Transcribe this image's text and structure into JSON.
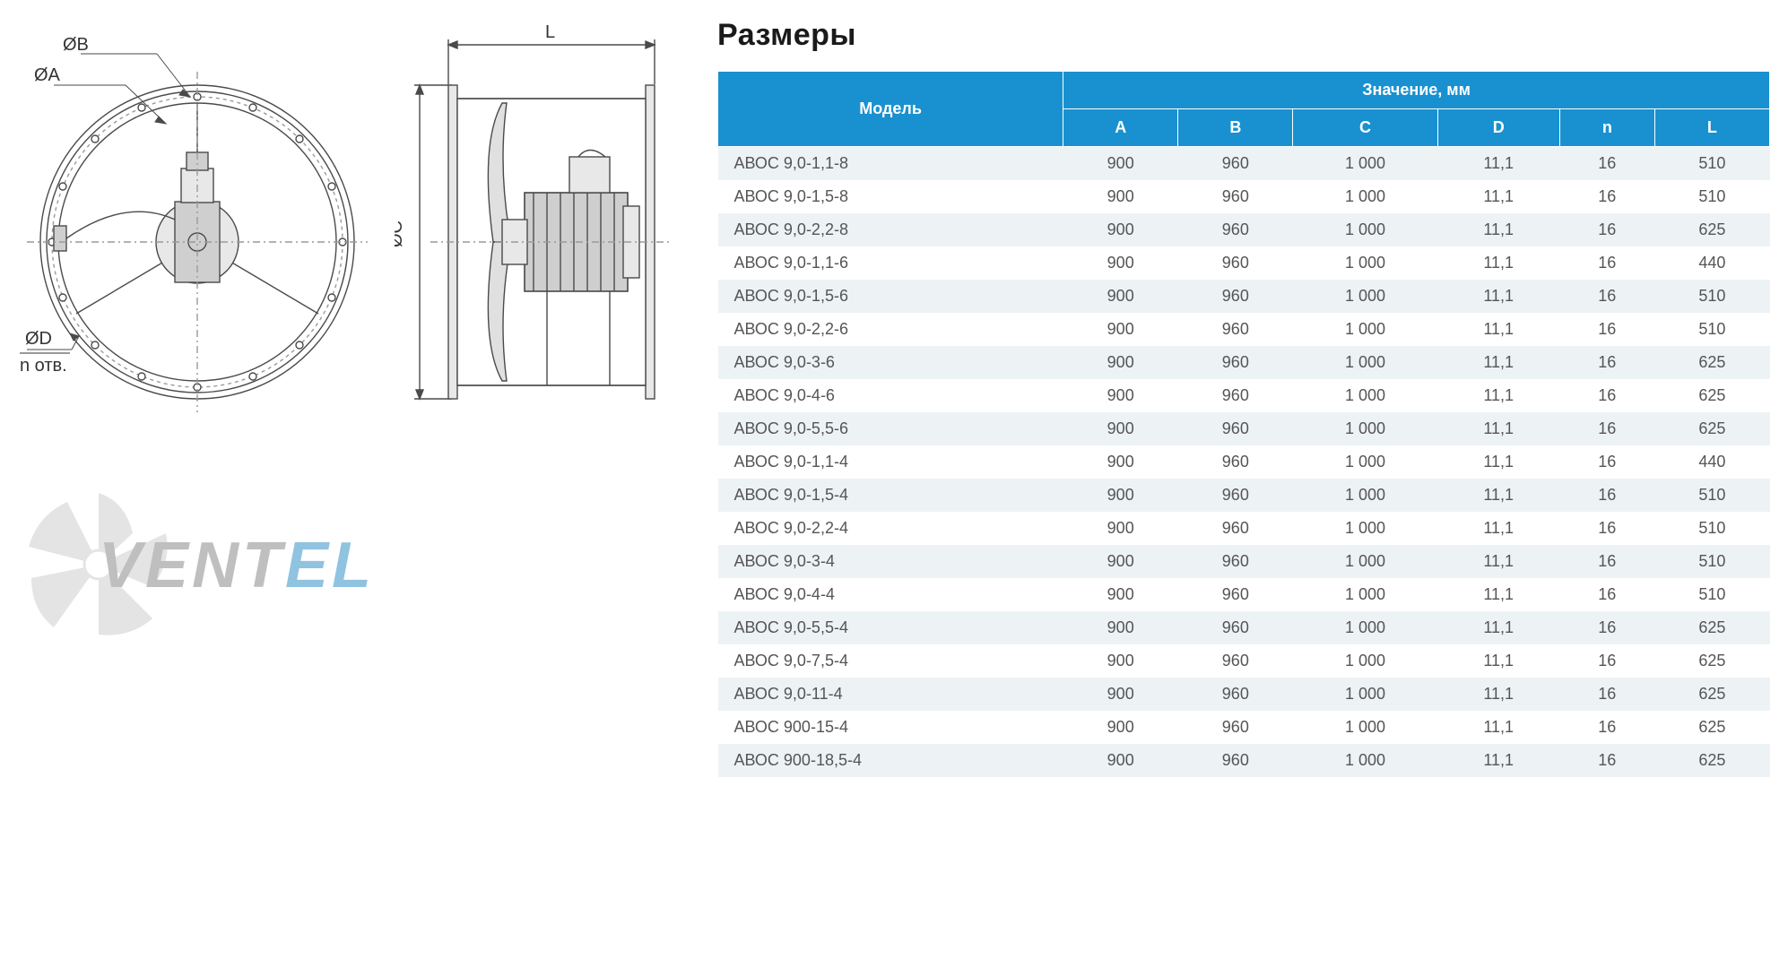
{
  "title": "Размеры",
  "diagram": {
    "labels": {
      "ob": "ØB",
      "oa": "ØA",
      "od": "ØD",
      "n_otv": "n отв.",
      "oc": "ØC",
      "l": "L"
    },
    "colors": {
      "stroke": "#4a4a4a",
      "light": "#9a9a9a",
      "fill_light": "#e8e8e8",
      "fill_mid": "#cfcfcf"
    }
  },
  "watermark": {
    "pre": "VENT",
    "suf": "EL",
    "fan_color": "#e4e4e4",
    "pre_color": "#bfbfbf",
    "suf_color": "#8fc3e0"
  },
  "table": {
    "header_bg": "#1991d0",
    "header_fg": "#ffffff",
    "row_odd_bg": "#edf2f5",
    "row_even_bg": "#ffffff",
    "model_header": "Модель",
    "value_header": "Значение, мм",
    "columns": [
      "A",
      "B",
      "C",
      "D",
      "n",
      "L"
    ],
    "rows": [
      {
        "model": "АВОС 9,0-1,1-8",
        "v": [
          "900",
          "960",
          "1 000",
          "11,1",
          "16",
          "510"
        ]
      },
      {
        "model": "АВОС 9,0-1,5-8",
        "v": [
          "900",
          "960",
          "1 000",
          "11,1",
          "16",
          "510"
        ]
      },
      {
        "model": "АВОС 9,0-2,2-8",
        "v": [
          "900",
          "960",
          "1 000",
          "11,1",
          "16",
          "625"
        ]
      },
      {
        "model": "АВОС 9,0-1,1-6",
        "v": [
          "900",
          "960",
          "1 000",
          "11,1",
          "16",
          "440"
        ]
      },
      {
        "model": "АВОС 9,0-1,5-6",
        "v": [
          "900",
          "960",
          "1 000",
          "11,1",
          "16",
          "510"
        ]
      },
      {
        "model": "АВОС 9,0-2,2-6",
        "v": [
          "900",
          "960",
          "1 000",
          "11,1",
          "16",
          "510"
        ]
      },
      {
        "model": "АВОС 9,0-3-6",
        "v": [
          "900",
          "960",
          "1 000",
          "11,1",
          "16",
          "625"
        ]
      },
      {
        "model": "АВОС 9,0-4-6",
        "v": [
          "900",
          "960",
          "1 000",
          "11,1",
          "16",
          "625"
        ]
      },
      {
        "model": "АВОС 9,0-5,5-6",
        "v": [
          "900",
          "960",
          "1 000",
          "11,1",
          "16",
          "625"
        ]
      },
      {
        "model": "АВОС 9,0-1,1-4",
        "v": [
          "900",
          "960",
          "1 000",
          "11,1",
          "16",
          "440"
        ]
      },
      {
        "model": "АВОС 9,0-1,5-4",
        "v": [
          "900",
          "960",
          "1 000",
          "11,1",
          "16",
          "510"
        ]
      },
      {
        "model": "АВОС 9,0-2,2-4",
        "v": [
          "900",
          "960",
          "1 000",
          "11,1",
          "16",
          "510"
        ]
      },
      {
        "model": "АВОС 9,0-3-4",
        "v": [
          "900",
          "960",
          "1 000",
          "11,1",
          "16",
          "510"
        ]
      },
      {
        "model": "АВОС 9,0-4-4",
        "v": [
          "900",
          "960",
          "1 000",
          "11,1",
          "16",
          "510"
        ]
      },
      {
        "model": "АВОС 9,0-5,5-4",
        "v": [
          "900",
          "960",
          "1 000",
          "11,1",
          "16",
          "625"
        ]
      },
      {
        "model": "АВОС 9,0-7,5-4",
        "v": [
          "900",
          "960",
          "1 000",
          "11,1",
          "16",
          "625"
        ]
      },
      {
        "model": "АВОС 9,0-11-4",
        "v": [
          "900",
          "960",
          "1 000",
          "11,1",
          "16",
          "625"
        ]
      },
      {
        "model": "АВОС 900-15-4",
        "v": [
          "900",
          "960",
          "1 000",
          "11,1",
          "16",
          "625"
        ]
      },
      {
        "model": "АВОС 900-18,5-4",
        "v": [
          "900",
          "960",
          "1 000",
          "11,1",
          "16",
          "625"
        ]
      }
    ]
  }
}
